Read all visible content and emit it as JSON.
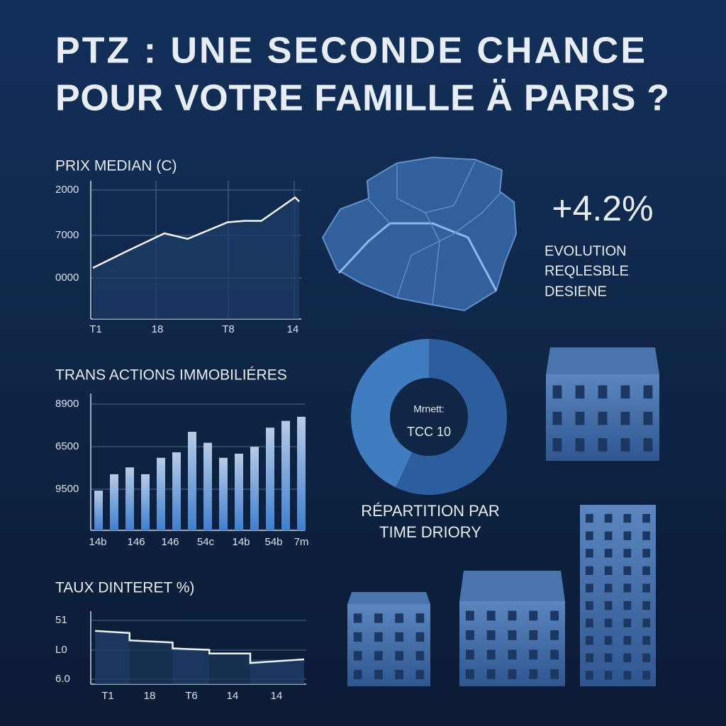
{
  "title": {
    "lines": [
      "PTZ : UNE SECONDE CHANCE",
      "POUR VOTRE FAMILLE Ä PARIS ?"
    ]
  },
  "price": {
    "title": "PRIX MEDIAN (C)",
    "y_labels": [
      "2000",
      "7000",
      "0000"
    ],
    "x_labels": [
      "T1",
      "18",
      "T8",
      "14"
    ],
    "x": [
      1,
      17,
      35,
      46,
      65,
      73,
      81,
      97,
      99
    ],
    "values": [
      37,
      49,
      62,
      58,
      70,
      71,
      71,
      88,
      85
    ]
  },
  "transactions": {
    "title": "TRANS ACTIONS IMMOBILIÉRES",
    "y_labels": [
      "8900",
      "6500",
      "9500"
    ],
    "x_labels": [
      "14b",
      "146",
      "146",
      "54c",
      "14b",
      "54b",
      "7m"
    ],
    "values": [
      29,
      41,
      46,
      41,
      53,
      57,
      72,
      64,
      53,
      56,
      61,
      75,
      80,
      83
    ]
  },
  "rates": {
    "title": "TAUX DINTERET %)",
    "y_labels": [
      "51",
      "L0",
      "6.0"
    ],
    "x_labels": [
      "T1",
      "18",
      "T6",
      "14",
      "14"
    ],
    "x": [
      2,
      18,
      18,
      38,
      38,
      55,
      55,
      74,
      74,
      99
    ],
    "values": [
      73,
      70,
      60,
      57,
      49,
      47,
      42,
      42,
      29,
      34
    ]
  },
  "evolution": {
    "value": "+4.2%",
    "lines": [
      "EVOLUTION",
      "REQLESBLE",
      "DESIENE"
    ]
  },
  "distribution": {
    "center_lines": [
      "Mrnett:",
      "TCC 10"
    ],
    "caption": [
      "RÉPARTITION PAR",
      "TIME DRIORY"
    ],
    "values": [
      57,
      43
    ],
    "colors": [
      "#2c5e9e",
      "#3f7cc0"
    ]
  }
}
